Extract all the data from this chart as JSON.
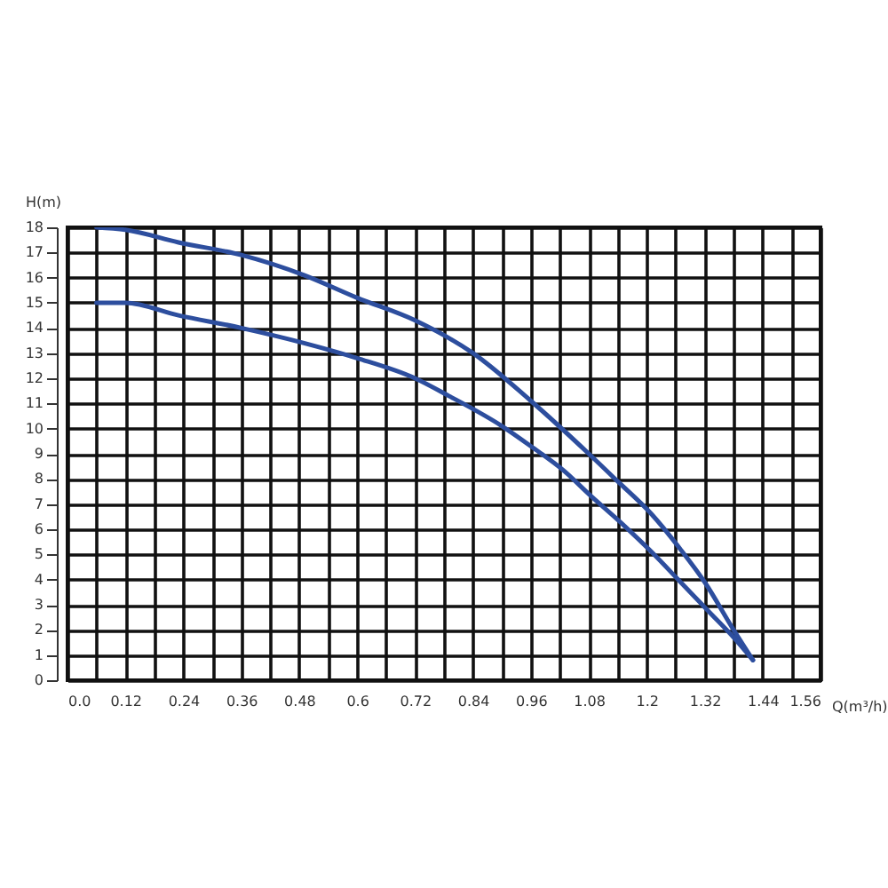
{
  "chart_data": {
    "type": "line",
    "xlabel": "Q(m³/h)",
    "ylabel": "H(m)",
    "grid": true,
    "xlim": [
      0,
      1.56
    ],
    "ylim": [
      0,
      18
    ],
    "xticks": [
      {
        "value": 0,
        "label": "0.0"
      },
      {
        "value": 0.06,
        "label": null
      },
      0.12,
      {
        "value": 0.18,
        "label": null
      },
      0.24,
      {
        "value": 0.3,
        "label": null
      },
      0.36,
      {
        "value": 0.42,
        "label": null
      },
      0.48,
      {
        "value": 0.54,
        "label": null
      },
      0.6,
      {
        "value": 0.66,
        "label": null
      },
      0.72,
      {
        "value": 0.78,
        "label": null
      },
      0.84,
      {
        "value": 0.9,
        "label": null
      },
      0.96,
      {
        "value": 1.02,
        "label": null
      },
      1.08,
      {
        "value": 1.14,
        "label": null
      },
      1.2,
      {
        "value": 1.26,
        "label": null
      },
      1.32,
      {
        "value": 1.38,
        "label": null
      },
      1.44,
      {
        "value": 1.5,
        "label": null
      },
      1.56
    ],
    "yticks": [
      0,
      1,
      2,
      3,
      4,
      5,
      6,
      7,
      8,
      9,
      10,
      11,
      12,
      13,
      14,
      15,
      16,
      17,
      18
    ],
    "series": [
      {
        "color": "#2d4e9e",
        "x": [
          0.06,
          0.12,
          0.23,
          0.36,
          0.49,
          0.6,
          0.72,
          0.84,
          0.96,
          1.08,
          1.14,
          1.21,
          1.27,
          1.32,
          1.38,
          1.42
        ],
        "values": [
          18,
          17.9,
          17.4,
          16.9,
          16.1,
          15.2,
          14.3,
          13.0,
          11.1,
          9.0,
          7.9,
          6.6,
          5.2,
          3.9,
          2.0,
          0.8
        ]
      },
      {
        "color": "#2d4e9e",
        "x": [
          0.06,
          0.12,
          0.23,
          0.36,
          0.49,
          0.6,
          0.72,
          0.79,
          0.9,
          0.96,
          1.03,
          1.08,
          1.15,
          1.21,
          1.27,
          1.33,
          1.38,
          1.42
        ],
        "values": [
          15,
          15,
          14.5,
          14.0,
          13.4,
          12.8,
          12.0,
          11.3,
          10.1,
          9.3,
          8.3,
          7.4,
          6.2,
          5.1,
          3.9,
          2.7,
          1.7,
          0.8
        ]
      }
    ]
  }
}
